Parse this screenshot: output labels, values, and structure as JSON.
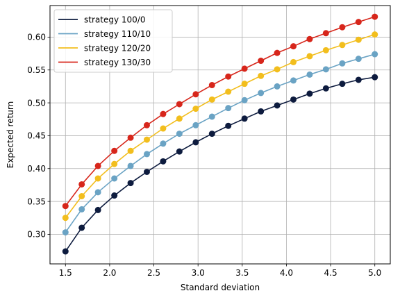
{
  "chart_data": {
    "type": "line",
    "xlabel": "Standard deviation",
    "ylabel": "Expected return",
    "xlim": [
      1.325,
      5.175
    ],
    "ylim": [
      0.255,
      0.648
    ],
    "xticks": [
      1.5,
      2.0,
      2.5,
      3.0,
      3.5,
      4.0,
      4.5,
      5.0
    ],
    "xtick_labels": [
      "1.5",
      "2.0",
      "2.5",
      "3.0",
      "3.5",
      "4.0",
      "4.5",
      "5.0"
    ],
    "yticks": [
      0.3,
      0.35,
      0.4,
      0.45,
      0.5,
      0.55,
      0.6
    ],
    "ytick_labels": [
      "0.30",
      "0.35",
      "0.40",
      "0.45",
      "0.50",
      "0.55",
      "0.60"
    ],
    "grid": true,
    "legend_position": "upper-left",
    "markers": true,
    "x": [
      1.5,
      1.684,
      1.868,
      2.053,
      2.237,
      2.421,
      2.605,
      2.789,
      2.974,
      3.158,
      3.342,
      3.526,
      3.711,
      3.895,
      4.079,
      4.263,
      4.447,
      4.632,
      4.816,
      5.0
    ],
    "series": [
      {
        "name": "strategy 100/0",
        "color": "#0d1b3e",
        "values": [
          0.274,
          0.31,
          0.337,
          0.359,
          0.378,
          0.395,
          0.411,
          0.426,
          0.44,
          0.453,
          0.465,
          0.476,
          0.487,
          0.496,
          0.505,
          0.514,
          0.522,
          0.529,
          0.535,
          0.539
        ]
      },
      {
        "name": "strategy 110/10",
        "color": "#6aa3c4",
        "values": [
          0.303,
          0.338,
          0.364,
          0.385,
          0.404,
          0.422,
          0.438,
          0.453,
          0.466,
          0.479,
          0.492,
          0.504,
          0.515,
          0.525,
          0.534,
          0.543,
          0.551,
          0.56,
          0.567,
          0.574
        ]
      },
      {
        "name": "strategy 120/20",
        "color": "#f2be1d",
        "values": [
          0.325,
          0.358,
          0.385,
          0.407,
          0.427,
          0.444,
          0.461,
          0.476,
          0.491,
          0.505,
          0.517,
          0.529,
          0.541,
          0.551,
          0.562,
          0.571,
          0.58,
          0.588,
          0.596,
          0.604
        ]
      },
      {
        "name": "strategy 130/30",
        "color": "#d7261b",
        "values": [
          0.343,
          0.376,
          0.404,
          0.427,
          0.447,
          0.466,
          0.483,
          0.498,
          0.513,
          0.527,
          0.54,
          0.552,
          0.564,
          0.576,
          0.586,
          0.597,
          0.606,
          0.615,
          0.623,
          0.631
        ]
      }
    ]
  }
}
